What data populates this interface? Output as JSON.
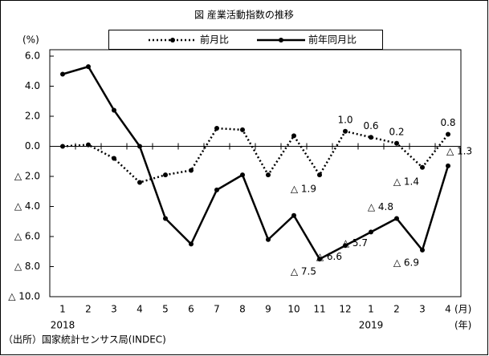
{
  "chart_data": {
    "type": "line",
    "title": "図 産業活動指数の推移",
    "y_label": "(%)",
    "x_unit": "(月)",
    "year_unit": "(年)",
    "source": "（出所）国家統計センサス局(INDEC)",
    "categories": [
      "1",
      "2",
      "3",
      "4",
      "5",
      "6",
      "7",
      "8",
      "9",
      "10",
      "11",
      "12",
      "1",
      "2",
      "3",
      "4"
    ],
    "years": [
      "2018",
      null,
      null,
      null,
      null,
      null,
      null,
      null,
      null,
      null,
      null,
      null,
      "2019",
      null,
      null,
      null
    ],
    "series": [
      {
        "name": "前月比",
        "color": "#000000",
        "style": "dotted",
        "values": [
          0.0,
          0.1,
          -0.8,
          -2.4,
          -1.9,
          -1.6,
          1.2,
          1.1,
          -1.9,
          0.7,
          -1.9,
          1.0,
          0.6,
          0.2,
          -1.4,
          0.8
        ],
        "value_labels": [
          null,
          null,
          null,
          null,
          null,
          null,
          null,
          null,
          null,
          null,
          "△ 1.9",
          "1.0",
          "0.6",
          "0.2",
          "△ 1.4",
          "0.8"
        ]
      },
      {
        "name": "前年同月比",
        "color": "#000000",
        "style": "solid",
        "values": [
          4.8,
          5.3,
          2.4,
          0.0,
          -4.8,
          -6.5,
          -2.9,
          -1.9,
          -6.2,
          -4.6,
          -7.5,
          -6.6,
          -5.7,
          -4.8,
          -6.9,
          -1.3
        ],
        "value_labels": [
          null,
          null,
          null,
          null,
          null,
          null,
          null,
          null,
          null,
          null,
          "△ 7.5",
          "△ 6.6",
          "△ 5.7",
          "△ 4.8",
          "△ 6.9",
          "△ 1.3"
        ]
      }
    ],
    "ylim": [
      -10,
      6
    ],
    "yticks": [
      {
        "value": 6,
        "label": "6.0"
      },
      {
        "value": 4,
        "label": "4.0"
      },
      {
        "value": 2,
        "label": "2.0"
      },
      {
        "value": 0,
        "label": "0.0"
      },
      {
        "value": -2,
        "label": "△ 2.0"
      },
      {
        "value": -4,
        "label": "△ 4.0"
      },
      {
        "value": -6,
        "label": "△ 6.0"
      },
      {
        "value": -8,
        "label": "△ 8.0"
      },
      {
        "value": -10,
        "label": "△ 10.0"
      }
    ],
    "legend": "top"
  }
}
